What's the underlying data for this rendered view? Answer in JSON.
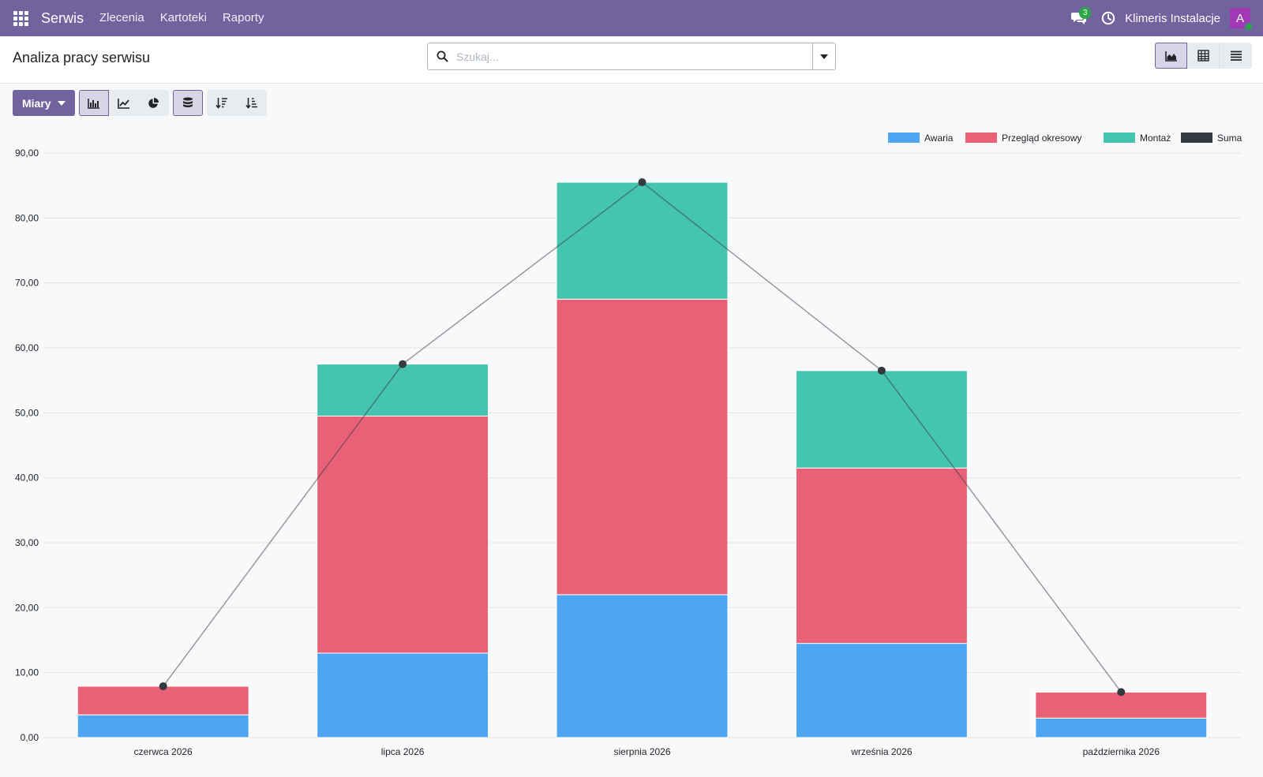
{
  "navbar": {
    "brand": "Serwis",
    "menu": [
      "Zlecenia",
      "Kartoteki",
      "Raporty"
    ],
    "messages_count": "3",
    "company": "Klimeris Instalacje",
    "avatar_initial": "A",
    "icons": [
      "apps-grid-icon",
      "chat-icon",
      "clock-icon"
    ]
  },
  "control_panel": {
    "title": "Analiza pracy serwisu",
    "search_placeholder": "Szukaj...",
    "views": [
      "graph-view",
      "pivot-view",
      "list-view"
    ],
    "active_view": "graph-view"
  },
  "graph_toolbar": {
    "measures_label": "Miary",
    "chart_types": [
      "bar",
      "line",
      "pie"
    ],
    "active_chart_type": "bar",
    "stacked": true,
    "sort_buttons": [
      "descending",
      "ascending"
    ]
  },
  "colors": {
    "navbar": "#71639e",
    "awaria": "#4ea6f2",
    "przeglad": "#e96176",
    "montaz": "#45c4af",
    "suma": "#343a40"
  },
  "chart_data": {
    "type": "bar",
    "stacked": true,
    "categories": [
      "czerwca 2026",
      "lipca 2026",
      "sierpnia 2026",
      "września 2026",
      "października 2026"
    ],
    "series": [
      {
        "name": "Awaria",
        "color": "#4ea6f2",
        "values": [
          3.5,
          13.0,
          22.0,
          14.5,
          3.0
        ]
      },
      {
        "name": "Przegląd okresowy",
        "color": "#e96176",
        "values": [
          4.4,
          36.5,
          45.5,
          27.0,
          4.0
        ]
      },
      {
        "name": "Montaż",
        "color": "#45c4af",
        "values": [
          0,
          8.0,
          18.0,
          15.0,
          0
        ]
      }
    ],
    "total_series": {
      "name": "Suma",
      "color": "#343a40",
      "type": "line",
      "values": [
        7.9,
        57.5,
        85.5,
        56.5,
        7.0
      ]
    },
    "ylim": [
      0,
      90
    ],
    "yticks": [
      "0,00",
      "10,00",
      "20,00",
      "30,00",
      "40,00",
      "50,00",
      "60,00",
      "70,00",
      "80,00",
      "90,00"
    ],
    "legend_position": "top-right",
    "grid": true
  }
}
